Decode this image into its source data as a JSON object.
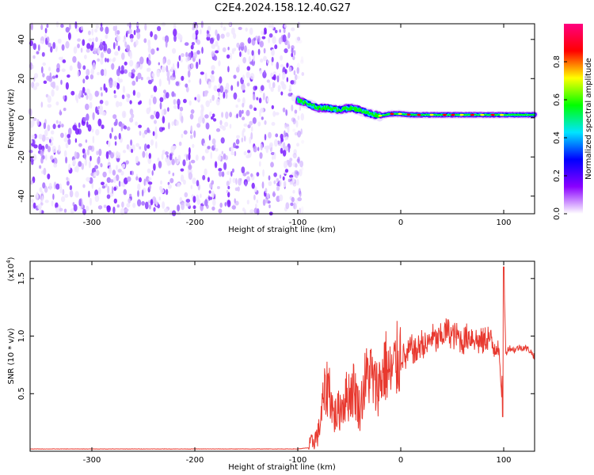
{
  "title": "C2E4.2024.158.12.40.G27",
  "chart_data": [
    {
      "type": "heatmap",
      "name": "spectrogram",
      "xlabel": "Height of straight line (km)",
      "ylabel": "Frequency (Hz)",
      "xlim": [
        -360,
        130
      ],
      "ylim": [
        -49,
        48
      ],
      "xticks": [
        -300,
        -200,
        -100,
        0,
        100
      ],
      "xtick_labels": [
        "-300",
        "-200",
        "-100",
        "0",
        "100"
      ],
      "yticks": [
        -40,
        -20,
        0,
        20,
        40
      ],
      "ytick_labels": [
        "-40",
        "-20",
        "0",
        "20",
        "40"
      ],
      "noise_region_x": [
        -360,
        -95
      ],
      "signal_track": {
        "x": [
          -100,
          -90,
          -80,
          -70,
          -60,
          -50,
          -40,
          -30,
          -20,
          -10,
          0,
          10,
          20,
          30,
          40,
          50,
          60,
          70,
          80,
          90,
          100,
          110,
          120,
          130
        ],
        "freq": [
          9,
          7,
          5,
          5,
          4,
          5,
          4,
          2,
          1,
          2,
          2,
          1.5,
          1.5,
          1.5,
          1.5,
          1.5,
          1.5,
          1.5,
          1.5,
          1.5,
          1.5,
          1.5,
          1.5,
          1.5
        ]
      },
      "colorbar": {
        "label": "Normalized spectral amplitude",
        "range": [
          0,
          1
        ],
        "ticks": [
          0.0,
          0.2,
          0.4,
          0.6,
          0.8
        ],
        "tick_labels": [
          "0.0",
          "0.2",
          "0.4",
          "0.6",
          "0.8"
        ],
        "colors": [
          "#ffffff",
          "#8a00ff",
          "#0000ff",
          "#00e5ff",
          "#00ff00",
          "#ffff00",
          "#ff0000",
          "#ff0080"
        ]
      }
    },
    {
      "type": "line",
      "name": "snr",
      "xlabel": "Height of straight line (km)",
      "ylabel": "SNR (10 * v/v)",
      "y_scale_label": "(x10",
      "y_scale_exp": "4",
      "y_scale_close": ")",
      "xlim": [
        -360,
        130
      ],
      "ylim": [
        0,
        1.65
      ],
      "xticks": [
        -300,
        -200,
        -100,
        0,
        100
      ],
      "xtick_labels": [
        "-300",
        "-200",
        "-100",
        "0",
        "100"
      ],
      "yticks": [
        0.5,
        1.0,
        1.5
      ],
      "ytick_labels": [
        "0.5",
        "1.0",
        "1.5"
      ],
      "color": "#e8392f",
      "series": [
        {
          "x": [
            -360,
            -340,
            -320,
            -300,
            -280,
            -260,
            -240,
            -220,
            -200,
            -180,
            -160,
            -140,
            -120,
            -100,
            -90,
            -80,
            -75,
            -70,
            -65,
            -60,
            -55,
            -50,
            -45,
            -40,
            -35,
            -30,
            -25,
            -20,
            -15,
            -10,
            -5,
            0,
            5,
            10,
            15,
            20,
            25,
            30,
            35,
            40,
            45,
            50,
            55,
            60,
            65,
            70,
            75,
            80,
            85,
            90,
            95,
            98,
            100,
            102,
            105,
            110,
            115,
            120,
            125,
            130
          ],
          "y": [
            0.02,
            0.02,
            0.02,
            0.02,
            0.02,
            0.02,
            0.02,
            0.02,
            0.02,
            0.02,
            0.02,
            0.02,
            0.02,
            0.02,
            0.03,
            0.15,
            0.45,
            0.6,
            0.3,
            0.35,
            0.45,
            0.5,
            0.55,
            0.35,
            0.6,
            0.7,
            0.55,
            0.6,
            0.75,
            0.65,
            0.75,
            0.85,
            0.8,
            0.9,
            0.85,
            0.95,
            0.9,
            1.0,
            0.95,
            1.0,
            1.05,
            1.0,
            1.0,
            0.95,
            1.0,
            1.0,
            0.95,
            0.95,
            1.0,
            0.9,
            0.95,
            0.45,
            1.6,
            0.85,
            0.9,
            0.88,
            0.9,
            0.9,
            0.88,
            0.82
          ]
        }
      ]
    }
  ]
}
